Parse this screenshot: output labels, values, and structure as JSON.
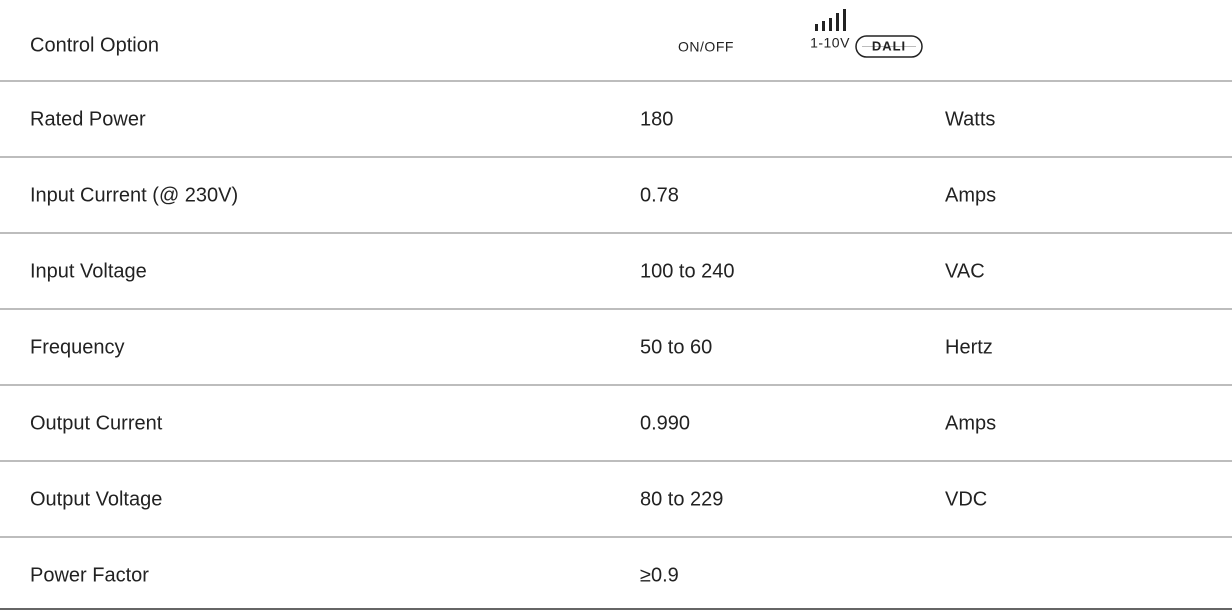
{
  "table": {
    "control_option": {
      "label": "Control Option",
      "options": [
        "ON/OFF",
        "1-10V",
        "DALI"
      ]
    },
    "rows": [
      [
        "Rated Power",
        "180",
        "Watts"
      ],
      [
        "Input Current (@ 230V)",
        "0.78",
        "Amps"
      ],
      [
        "Input Voltage",
        "100 to 240",
        "VAC"
      ],
      [
        "Frequency",
        "50 to 60",
        "Hertz"
      ],
      [
        "Output Current",
        "0.990",
        "Amps"
      ],
      [
        "Output Voltage",
        "80 to 229",
        "VDC"
      ],
      [
        "Power Factor",
        "≥0.9"
      ]
    ]
  }
}
